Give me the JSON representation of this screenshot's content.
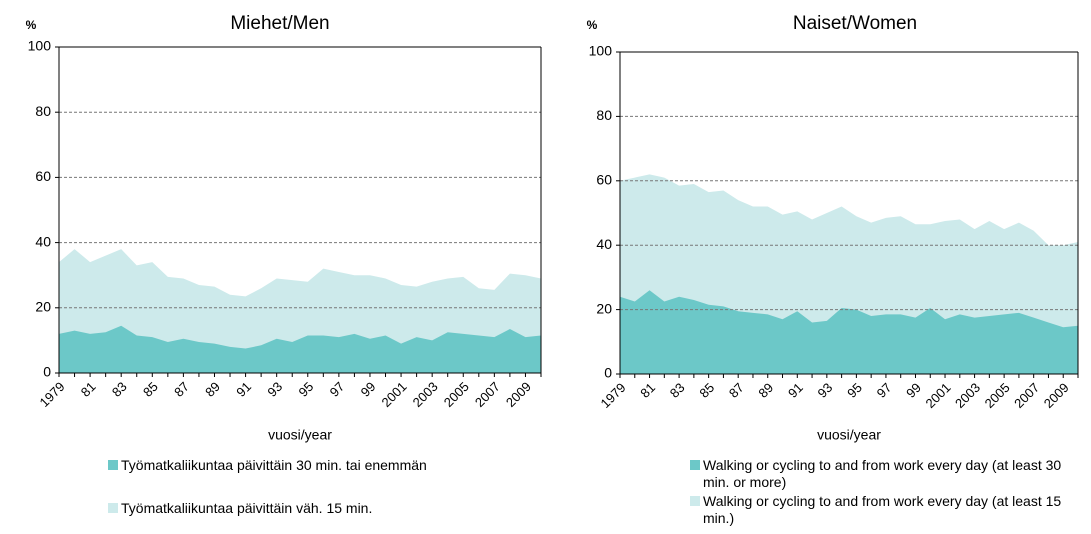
{
  "chart_data": [
    {
      "type": "area",
      "title": "Miehet/Men",
      "y_label": "%",
      "x_label": "vuosi/year",
      "categories": [
        "1979",
        null,
        "81",
        null,
        "83",
        null,
        "85",
        null,
        "87",
        null,
        "89",
        null,
        "91",
        null,
        "93",
        null,
        "95",
        null,
        "97",
        null,
        "99",
        null,
        "2001",
        null,
        "2003",
        null,
        "2005",
        null,
        "2007",
        null,
        "2009",
        null
      ],
      "series": [
        {
          "name": "Työmatkaliikuntaa päivittäin väh. 15 min.",
          "color": "#cdeaeb",
          "values": [
            34,
            38,
            34,
            36,
            38,
            33,
            34,
            29.5,
            29,
            27,
            26.5,
            24,
            23.5,
            26,
            29,
            28.5,
            28,
            32,
            31,
            30,
            30,
            29,
            27,
            26.5,
            28,
            29,
            29.5,
            26,
            25.5,
            30.5,
            30,
            29
          ]
        },
        {
          "name": "Työmatkaliikuntaa päivittäin 30 min. tai enemmän",
          "color": "#6cc8c8",
          "values": [
            12,
            13,
            12,
            12.5,
            14.5,
            11.5,
            11,
            9.5,
            10.5,
            9.5,
            9,
            8,
            7.5,
            8.5,
            10.5,
            9.5,
            11.5,
            11.5,
            11,
            12,
            10.5,
            11.5,
            9,
            11,
            10,
            12.5,
            12,
            11.5,
            11,
            13.5,
            11,
            11.5
          ]
        }
      ],
      "ylim": [
        0,
        100
      ],
      "yticks": [
        0,
        20,
        40,
        60,
        80,
        100
      ],
      "grid": true
    },
    {
      "type": "area",
      "title": "Naiset/Women",
      "y_label": "%",
      "x_label": "vuosi/year",
      "categories": [
        "1979",
        null,
        "81",
        null,
        "83",
        null,
        "85",
        null,
        "87",
        null,
        "89",
        null,
        "91",
        null,
        "93",
        null,
        "95",
        null,
        "97",
        null,
        "99",
        null,
        "2001",
        null,
        "2003",
        null,
        "2005",
        null,
        "2007",
        null,
        "2009",
        null
      ],
      "series": [
        {
          "name": "Walking or cycling to and from work every day (at least 15 min.)",
          "color": "#cdeaeb",
          "values": [
            60,
            61,
            62,
            61,
            58.5,
            59,
            56.5,
            57,
            54,
            52,
            52,
            49.5,
            50.5,
            48,
            50,
            52,
            49,
            47,
            48.5,
            49,
            46.5,
            46.5,
            47.5,
            48,
            45,
            47.5,
            45,
            47,
            44.5,
            40,
            40,
            41
          ]
        },
        {
          "name": "Walking or cycling to and from work every day (at least 30 min. or more)",
          "color": "#6cc8c8",
          "values": [
            24,
            22.5,
            26,
            22.5,
            24,
            23,
            21.5,
            21,
            19.5,
            19,
            18.5,
            17,
            19.5,
            16,
            16.5,
            20.5,
            20,
            18,
            18.5,
            18.5,
            17.5,
            20.5,
            17,
            18.5,
            17.5,
            18,
            18.5,
            19,
            17.5,
            16,
            14.5,
            15
          ]
        }
      ],
      "ylim": [
        0,
        100
      ],
      "yticks": [
        0,
        20,
        40,
        60,
        80,
        100
      ],
      "grid": true
    }
  ]
}
